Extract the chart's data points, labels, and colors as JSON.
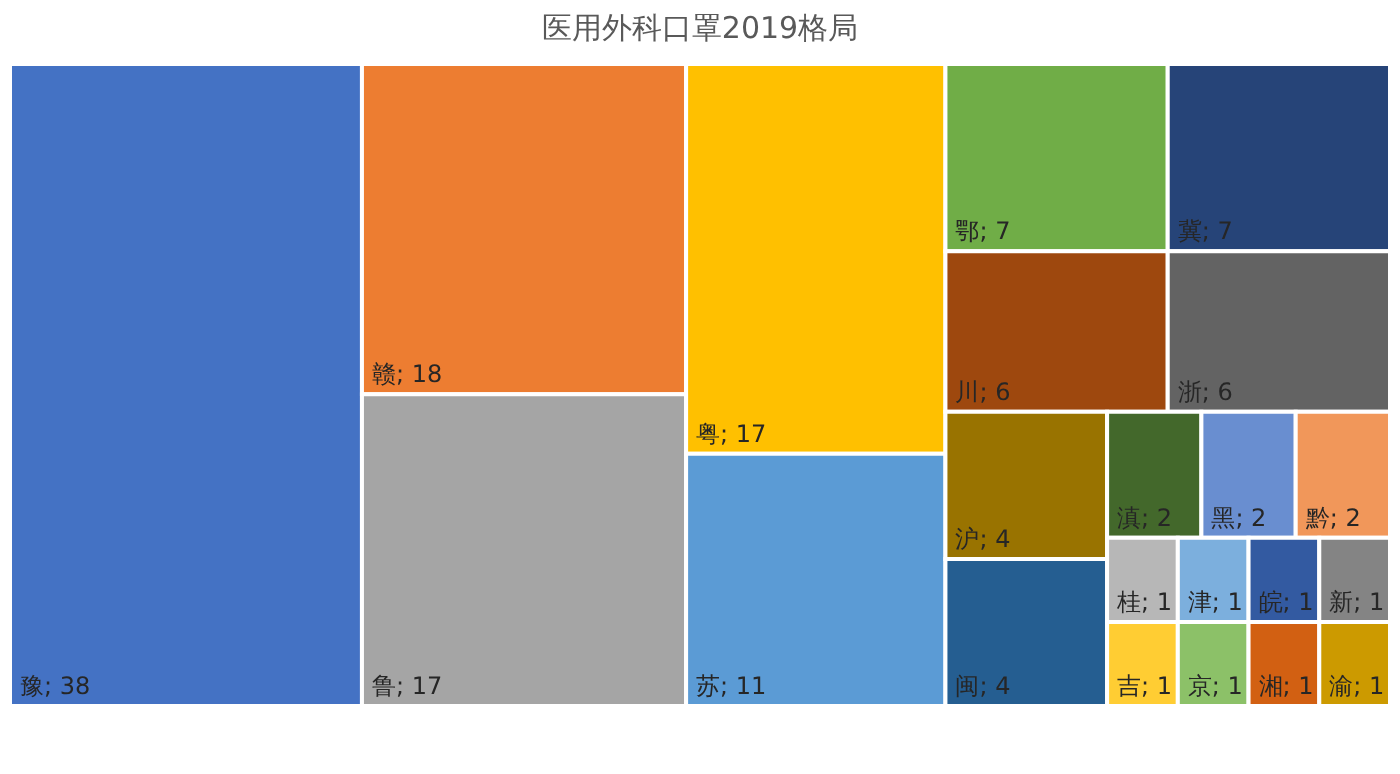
{
  "chart_data": {
    "type": "other",
    "title": "医用外科口罩2019格局",
    "categories": [
      "豫",
      "赣",
      "鲁",
      "粤",
      "苏",
      "鄂",
      "冀",
      "川",
      "浙",
      "沪",
      "闽",
      "滇",
      "黑",
      "黔",
      "桂",
      "吉",
      "津",
      "京",
      "皖",
      "新",
      "湘",
      "渝"
    ],
    "values": [
      38,
      18,
      17,
      17,
      11,
      7,
      7,
      6,
      6,
      4,
      4,
      2,
      2,
      2,
      1,
      1,
      1,
      1,
      1,
      1,
      1,
      1
    ],
    "value_labels": [
      "; 38",
      "; 18",
      "; 17",
      "; 17",
      "; 11",
      "; 7",
      "; 7",
      "; 6",
      "; 6",
      "; 4",
      "; 4",
      "; 2",
      "; 2",
      "; 2",
      "; 1",
      "; 1",
      "; 1",
      "; 1",
      "; 1",
      "; 1",
      "; 1",
      "; 1"
    ],
    "colors": [
      "#4472c4",
      "#ed7d31",
      "#a5a5a5",
      "#ffc000",
      "#5b9bd5",
      "#70ad47",
      "#264478",
      "#9e480e",
      "#636363",
      "#997300",
      "#255e91",
      "#43682b",
      "#698ed0",
      "#f1975a",
      "#b7b7b7",
      "#ffcd33",
      "#7cafdd",
      "#8cc168",
      "#335aa1",
      "#848484",
      "#d26012",
      "#cc9a00"
    ]
  }
}
